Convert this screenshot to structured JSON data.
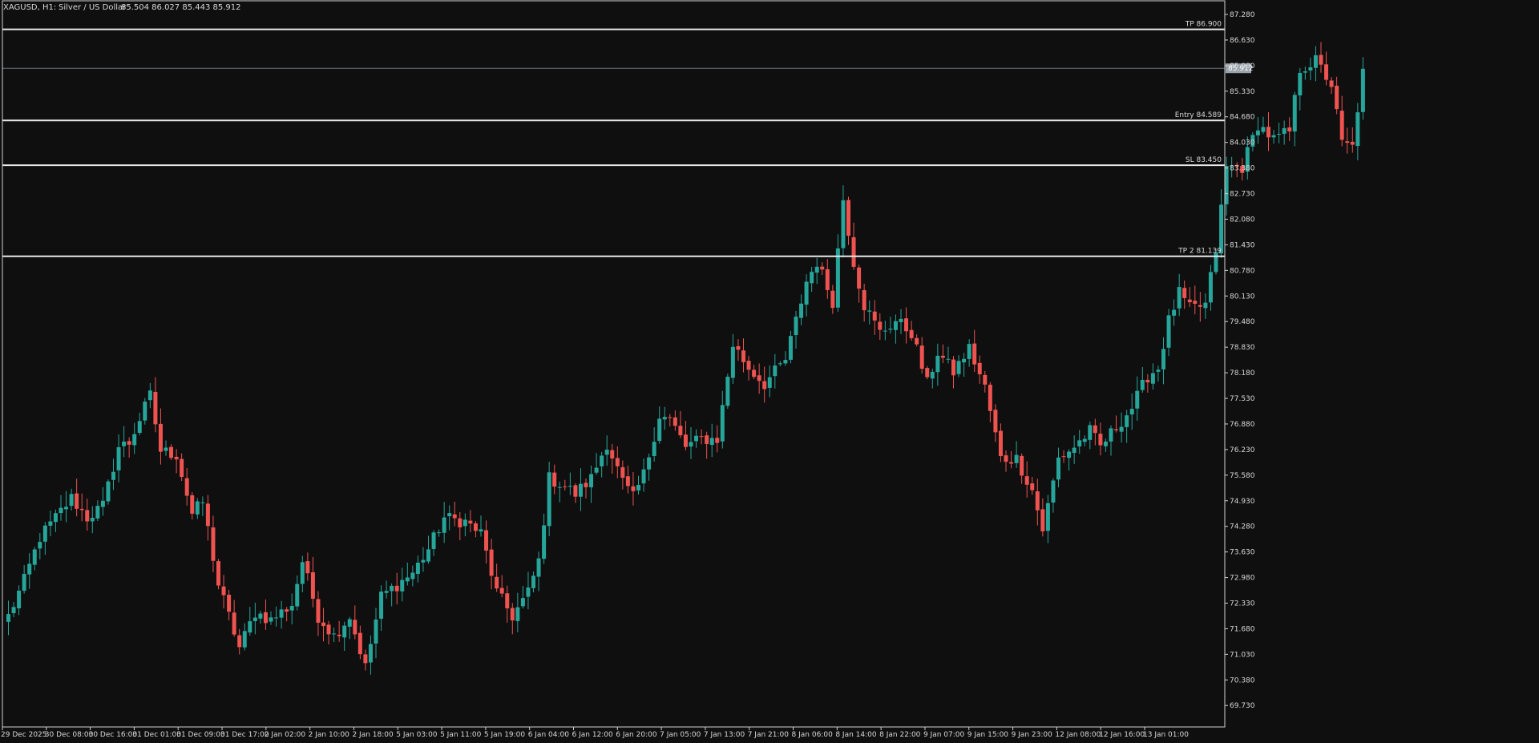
{
  "header": {
    "symbol": "XAGUSD, H1:",
    "description": "Silver / US Dollar",
    "ohlc": "85.504 86.027 85.443 85.912"
  },
  "colors": {
    "background": "#0f0f0f",
    "bull": "#26a69a",
    "bear": "#ef5350",
    "level_line": "#e8e8e8",
    "price_line": "#6b7280",
    "axis_text": "#d8d8d8",
    "current_price_bg": "#9aa3ad"
  },
  "current_price": 85.912,
  "current_price_label": "85.912",
  "levels": [
    {
      "name": "tp1",
      "label": "TP 86.900",
      "price": 86.9
    },
    {
      "name": "entry",
      "label": "Entry 84.589",
      "price": 84.589
    },
    {
      "name": "sl",
      "label": "SL 83.450",
      "price": 83.45
    },
    {
      "name": "tp2",
      "label": "TP 2 81.139",
      "price": 81.139
    }
  ],
  "chart_data": {
    "type": "candlestick",
    "title": "XAGUSD, H1:  Silver / US Dollar",
    "ylim": [
      69.45,
      87.28
    ],
    "y_ticks": [
      "87.280",
      "86.630",
      "85.980",
      "85.330",
      "84.680",
      "84.030",
      "83.380",
      "82.730",
      "82.080",
      "81.430",
      "80.780",
      "80.130",
      "79.480",
      "78.830",
      "78.180",
      "77.530",
      "76.880",
      "76.230",
      "75.580",
      "74.930",
      "74.280",
      "73.630",
      "72.980",
      "72.330",
      "71.680",
      "71.030",
      "70.380",
      "69.730"
    ],
    "x_labels": [
      "29 Dec 2025",
      "30 Dec 08:00",
      "30 Dec 16:00",
      "31 Dec 01:00",
      "31 Dec 09:00",
      "31 Dec 17:00",
      "2 Jan 02:00",
      "2 Jan 10:00",
      "2 Jan 18:00",
      "5 Jan 03:00",
      "5 Jan 11:00",
      "5 Jan 19:00",
      "6 Jan 04:00",
      "6 Jan 12:00",
      "6 Jan 20:00",
      "7 Jan 05:00",
      "7 Jan 13:00",
      "7 Jan 21:00",
      "8 Jan 06:00",
      "8 Jan 14:00",
      "8 Jan 22:00",
      "9 Jan 07:00",
      "9 Jan 15:00",
      "9 Jan 23:00",
      "12 Jan 08:00",
      "12 Jan 16:00",
      "13 Jan 01:00"
    ],
    "candle_count": 232,
    "anchors": [
      [
        0,
        72.0
      ],
      [
        3,
        72.9
      ],
      [
        6,
        74.0
      ],
      [
        9,
        74.5
      ],
      [
        12,
        75.0
      ],
      [
        15,
        74.5
      ],
      [
        18,
        74.8
      ],
      [
        21,
        76.3
      ],
      [
        23,
        76.4
      ],
      [
        27,
        77.6
      ],
      [
        29,
        76.2
      ],
      [
        32,
        76.1
      ],
      [
        35,
        74.6
      ],
      [
        37,
        74.9
      ],
      [
        40,
        72.8
      ],
      [
        44,
        71.2
      ],
      [
        47,
        72.1
      ],
      [
        50,
        71.9
      ],
      [
        54,
        72.3
      ],
      [
        56,
        73.4
      ],
      [
        59,
        72.0
      ],
      [
        62,
        71.5
      ],
      [
        65,
        72.0
      ],
      [
        68,
        70.7
      ],
      [
        71,
        72.5
      ],
      [
        74,
        72.8
      ],
      [
        77,
        73.1
      ],
      [
        80,
        73.7
      ],
      [
        83,
        74.5
      ],
      [
        87,
        74.4
      ],
      [
        90,
        74.1
      ],
      [
        93,
        72.6
      ],
      [
        96,
        72.0
      ],
      [
        99,
        72.6
      ],
      [
        101,
        73.4
      ],
      [
        103,
        75.5
      ],
      [
        106,
        75.3
      ],
      [
        108,
        75.1
      ],
      [
        111,
        75.5
      ],
      [
        114,
        76.4
      ],
      [
        117,
        75.4
      ],
      [
        119,
        75.0
      ],
      [
        121,
        75.6
      ],
      [
        124,
        77.1
      ],
      [
        126,
        77.0
      ],
      [
        129,
        76.3
      ],
      [
        132,
        76.5
      ],
      [
        135,
        76.5
      ],
      [
        138,
        78.9
      ],
      [
        141,
        78.3
      ],
      [
        144,
        77.9
      ],
      [
        148,
        78.5
      ],
      [
        152,
        80.5
      ],
      [
        154,
        81.0
      ],
      [
        157,
        80.0
      ],
      [
        159,
        82.6
      ],
      [
        161,
        81.0
      ],
      [
        163,
        79.9
      ],
      [
        166,
        79.2
      ],
      [
        169,
        79.5
      ],
      [
        172,
        79.2
      ],
      [
        175,
        77.9
      ],
      [
        177,
        78.7
      ],
      [
        180,
        78.2
      ],
      [
        183,
        78.8
      ],
      [
        186,
        77.8
      ],
      [
        189,
        76.0
      ],
      [
        192,
        76.0
      ],
      [
        195,
        75.2
      ],
      [
        197,
        74.2
      ],
      [
        200,
        76.0
      ],
      [
        203,
        76.3
      ],
      [
        206,
        76.7
      ],
      [
        208,
        76.3
      ],
      [
        211,
        76.8
      ],
      [
        214,
        77.3
      ],
      [
        217,
        78.1
      ],
      [
        219,
        78.3
      ],
      [
        221,
        79.5
      ],
      [
        223,
        80.2
      ],
      [
        225,
        79.8
      ],
      [
        228,
        79.9
      ],
      [
        230,
        81.3
      ],
      [
        232,
        83.4
      ],
      [
        235,
        83.4
      ],
      [
        238,
        84.5
      ],
      [
        241,
        84.1
      ],
      [
        244,
        84.3
      ],
      [
        246,
        85.9
      ],
      [
        249,
        86.1
      ],
      [
        252,
        85.5
      ],
      [
        254,
        84.0
      ],
      [
        256,
        83.9
      ],
      [
        258,
        85.9
      ]
    ]
  }
}
